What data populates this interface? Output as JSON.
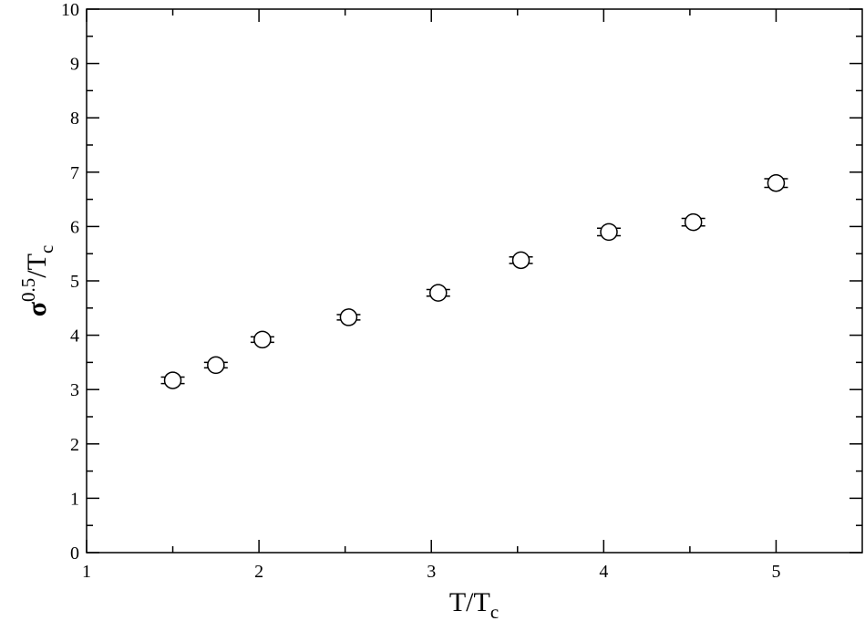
{
  "chart_data": {
    "type": "scatter",
    "xlabel": {
      "main": "T/T",
      "sub": "c"
    },
    "ylabel": {
      "main": "σ",
      "sup": "0.5",
      "mid": "/T",
      "sub": "c"
    },
    "x": [
      1.5,
      1.75,
      2.02,
      2.52,
      3.04,
      3.52,
      4.03,
      4.52,
      5.0
    ],
    "values": [
      3.17,
      3.45,
      3.92,
      4.33,
      4.78,
      5.38,
      5.9,
      6.08,
      6.8
    ],
    "errors": [
      0.06,
      0.05,
      0.05,
      0.05,
      0.06,
      0.06,
      0.07,
      0.07,
      0.08
    ],
    "color": "#000000",
    "xlim": [
      1,
      5.5
    ],
    "xticks": [
      1,
      2,
      3,
      4,
      5
    ],
    "xminorticks": [
      1.5,
      2.5,
      3.5,
      4.5
    ],
    "ylim": [
      0,
      10
    ],
    "yticks": [
      0,
      1,
      2,
      3,
      4,
      5,
      6,
      7,
      8,
      9,
      10
    ],
    "yminorticks": [
      0.5,
      1.5,
      2.5,
      3.5,
      4.5,
      5.5,
      6.5,
      7.5,
      8.5,
      9.5
    ]
  }
}
